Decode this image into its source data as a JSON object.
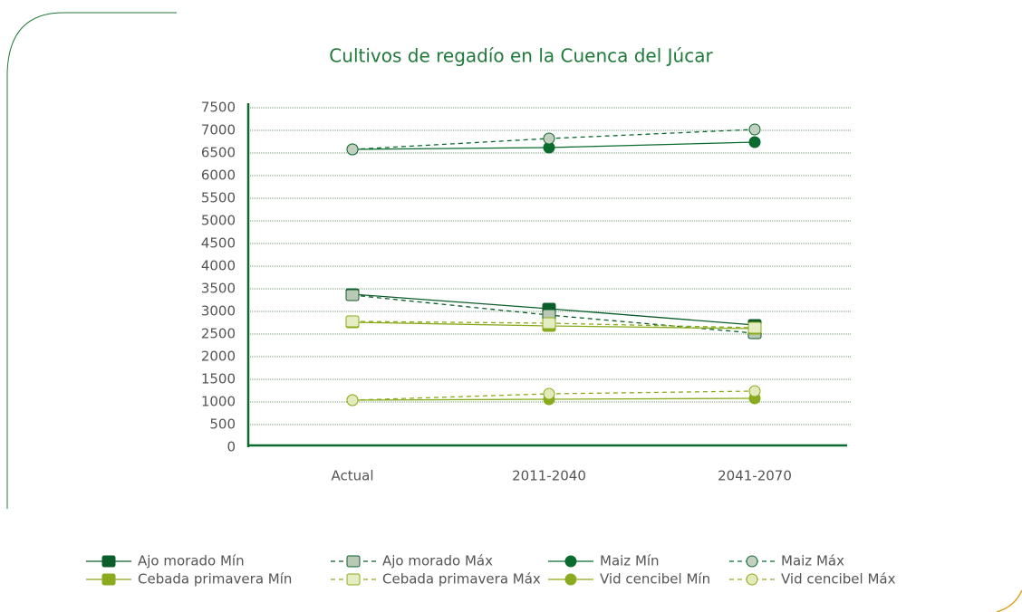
{
  "chart_data": {
    "type": "line",
    "title": "Cultivos de regadío en la Cuenca del Júcar",
    "categories": [
      "Actual",
      "2011-2040",
      "2041-2070"
    ],
    "ylim": [
      0,
      7500
    ],
    "yticks": [
      0,
      500,
      1000,
      1500,
      2000,
      2500,
      3000,
      3500,
      4000,
      4500,
      5000,
      5500,
      6000,
      6500,
      7000,
      7500
    ],
    "grid": true,
    "series": [
      {
        "name": "Ajo morado Mín",
        "color": "#0b5e2a",
        "line_color": "#0b5e2a",
        "marker": "square",
        "dashed": false,
        "values": [
          3380,
          3060,
          2700
        ]
      },
      {
        "name": "Ajo morado Máx",
        "color": "#b9c9b5",
        "line_color": "#0b5e2a",
        "marker": "square",
        "dashed": true,
        "values": [
          3360,
          2920,
          2520
        ]
      },
      {
        "name": "Maiz Mín",
        "color": "#0b6b2e",
        "line_color": "#0b6b2e",
        "marker": "circle",
        "dashed": false,
        "values": [
          6580,
          6620,
          6740
        ]
      },
      {
        "name": "Maiz Máx",
        "color": "#c3cfc0",
        "line_color": "#0b6b2e",
        "marker": "circle",
        "dashed": true,
        "values": [
          6580,
          6820,
          7020
        ]
      },
      {
        "name": "Cebada primavera Mín",
        "color": "#8aab1e",
        "line_color": "#8aab1e",
        "marker": "square",
        "dashed": false,
        "values": [
          2760,
          2680,
          2620
        ]
      },
      {
        "name": "Cebada primavera Máx",
        "color": "#e6edc3",
        "line_color": "#8aab1e",
        "marker": "square",
        "dashed": true,
        "values": [
          2780,
          2740,
          2640
        ]
      },
      {
        "name": "Vid cencibel Mín",
        "color": "#8aab1e",
        "line_color": "#8aab1e",
        "marker": "circle",
        "dashed": false,
        "values": [
          1040,
          1060,
          1080
        ]
      },
      {
        "name": "Vid cencibel Máx",
        "color": "#e3ebbb",
        "line_color": "#8aab1e",
        "marker": "circle",
        "dashed": true,
        "values": [
          1040,
          1180,
          1240
        ]
      }
    ]
  }
}
